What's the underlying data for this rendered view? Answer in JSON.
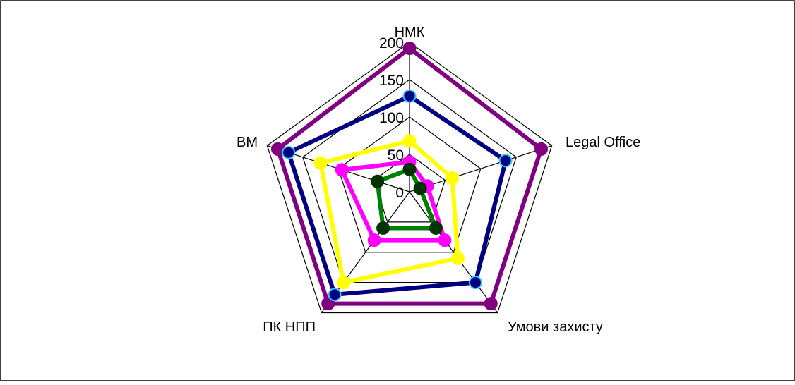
{
  "chart_data": {
    "type": "radar",
    "title": "",
    "axes": [
      "НМК",
      "Legal Office",
      "Умови захисту",
      "ПК НПП",
      "ВМ"
    ],
    "r_min": 0,
    "r_max": 200,
    "r_ticks": [
      "0",
      "50",
      "100",
      "150",
      "200"
    ],
    "grid": true,
    "legend": "none",
    "series": [
      {
        "color": "#800080",
        "marker": "#800080",
        "marker_stroke": "#800080",
        "values": [
          192,
          185,
          185,
          185,
          185
        ]
      },
      {
        "color": "#000080",
        "marker": "#000080",
        "marker_stroke": "#33CCFF",
        "values": [
          128,
          135,
          150,
          170,
          170
        ]
      },
      {
        "color": "#FFFF00",
        "marker": "#FFFF00",
        "marker_stroke": "#FFFF00",
        "values": [
          68,
          60,
          110,
          150,
          125
        ]
      },
      {
        "color": "#FF00FF",
        "marker": "#FF00FF",
        "marker_stroke": "#FF00FF",
        "values": [
          40,
          25,
          80,
          80,
          95
        ]
      },
      {
        "color": "#008000",
        "marker": "#003300",
        "marker_stroke": "#003300",
        "values": [
          30,
          15,
          60,
          60,
          45
        ]
      }
    ]
  }
}
